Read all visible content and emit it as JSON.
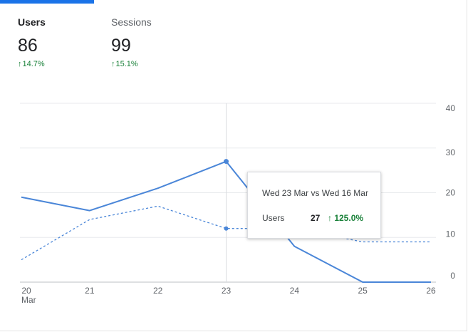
{
  "tabs": [
    {
      "label": "Users",
      "value": "86",
      "change": "14.7%"
    },
    {
      "label": "Sessions",
      "value": "99",
      "change": "15.1%"
    }
  ],
  "change_arrow": "↑",
  "colors": {
    "primary": "#1a73e8",
    "line": "#4a86d8",
    "positive": "#188038",
    "grid": "#e8eaed",
    "axis_text": "#5f6368"
  },
  "tooltip": {
    "title": "Wed 23 Mar vs Wed 16 Mar",
    "metric": "Users",
    "value": "27",
    "change": "↑ 125.0%"
  },
  "chart_data": {
    "type": "line",
    "categories": [
      "20",
      "21",
      "22",
      "23",
      "24",
      "25",
      "26"
    ],
    "x_sublabel": "Mar",
    "series": [
      {
        "values": [
          19,
          16,
          21,
          27,
          8,
          0,
          0
        ],
        "style": "solid"
      },
      {
        "values": [
          5,
          14,
          17,
          12,
          12,
          9,
          9
        ],
        "style": "dashed"
      }
    ],
    "yticks": [
      0,
      10,
      20,
      30,
      40
    ],
    "ylim": [
      0,
      40
    ],
    "grid": true,
    "highlight_index": 3
  }
}
